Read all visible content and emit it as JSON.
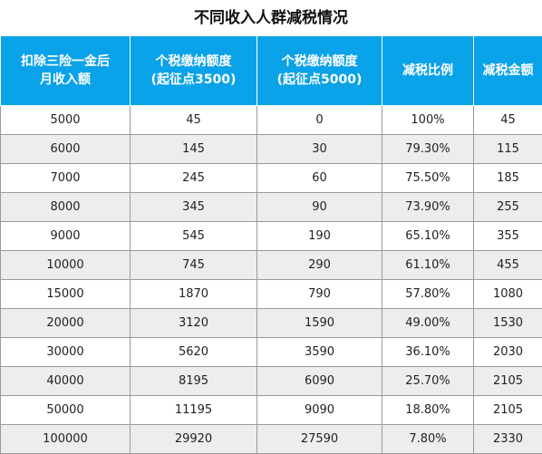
{
  "title": "不同收入人群减税情况",
  "header": [
    {
      "line1": "扣除三险一金后",
      "line2": "月收入额"
    },
    {
      "line1": "个税缴纳额度",
      "line2": "(起征点3500)"
    },
    {
      "line1": "个税缴纳额度",
      "line2": "(起征点5000)"
    },
    {
      "line1": "减税比例",
      "line2": ""
    },
    {
      "line1": "减税金额",
      "line2": ""
    }
  ],
  "rows": [
    [
      "5000",
      "45",
      "0",
      "100%",
      "45"
    ],
    [
      "6000",
      "145",
      "30",
      "79.30%",
      "115"
    ],
    [
      "7000",
      "245",
      "60",
      "75.50%",
      "185"
    ],
    [
      "8000",
      "345",
      "90",
      "73.90%",
      "255"
    ],
    [
      "9000",
      "545",
      "190",
      "65.10%",
      "355"
    ],
    [
      "10000",
      "745",
      "290",
      "61.10%",
      "455"
    ],
    [
      "15000",
      "1870",
      "790",
      "57.80%",
      "1080"
    ],
    [
      "20000",
      "3120",
      "1590",
      "49.00%",
      "1530"
    ],
    [
      "30000",
      "5620",
      "3590",
      "36.10%",
      "2030"
    ],
    [
      "40000",
      "8195",
      "6090",
      "25.70%",
      "2105"
    ],
    [
      "50000",
      "11195",
      "9090",
      "18.80%",
      "2105"
    ],
    [
      "100000",
      "29920",
      "27590",
      "7.80%",
      "2330"
    ]
  ],
  "colors": {
    "header_bg": "#0aa2e8",
    "header_text": "#ffffff",
    "row_alt": "#ededed",
    "grid": "#9a9a9a"
  }
}
